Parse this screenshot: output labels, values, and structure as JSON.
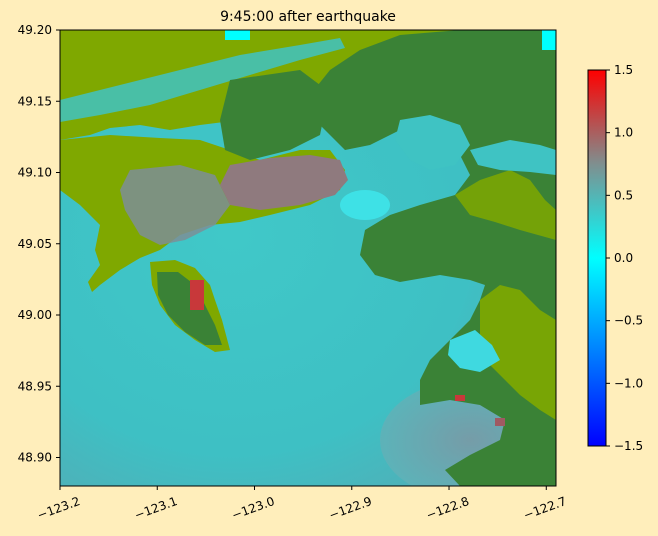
{
  "chart_data": {
    "type": "heatmap",
    "title": "9:45:00 after earthquake",
    "xlabel": "",
    "ylabel": "",
    "xlim": [
      -123.2,
      -122.69
    ],
    "ylim": [
      48.88,
      49.2
    ],
    "x_ticks": [
      -123.2,
      -123.1,
      -123.0,
      -122.9,
      -122.8,
      -122.7
    ],
    "x_tick_labels": [
      "−123.2",
      "−123.1",
      "−123.0",
      "−122.9",
      "−122.8",
      "−122.7"
    ],
    "y_ticks": [
      48.9,
      48.95,
      49.0,
      49.05,
      49.1,
      49.15,
      49.2
    ],
    "y_tick_labels": [
      "48.90",
      "48.95",
      "49.00",
      "49.05",
      "49.10",
      "49.15",
      "49.20"
    ],
    "colorbar": {
      "range": [
        -1.5,
        1.5
      ],
      "ticks": [
        -1.5,
        -1.0,
        -0.5,
        0.0,
        0.5,
        1.0,
        1.5
      ],
      "tick_labels": [
        "−1.5",
        "−1.0",
        "−0.5",
        "0.0",
        "0.5",
        "1.0",
        "1.5"
      ],
      "colors": [
        "#0000ff",
        "#00ffff",
        "#ff0000"
      ]
    },
    "land_colors": {
      "lowland": "#7fa800",
      "upland": "#3a8236"
    },
    "water_color": "#3fc3c3"
  }
}
